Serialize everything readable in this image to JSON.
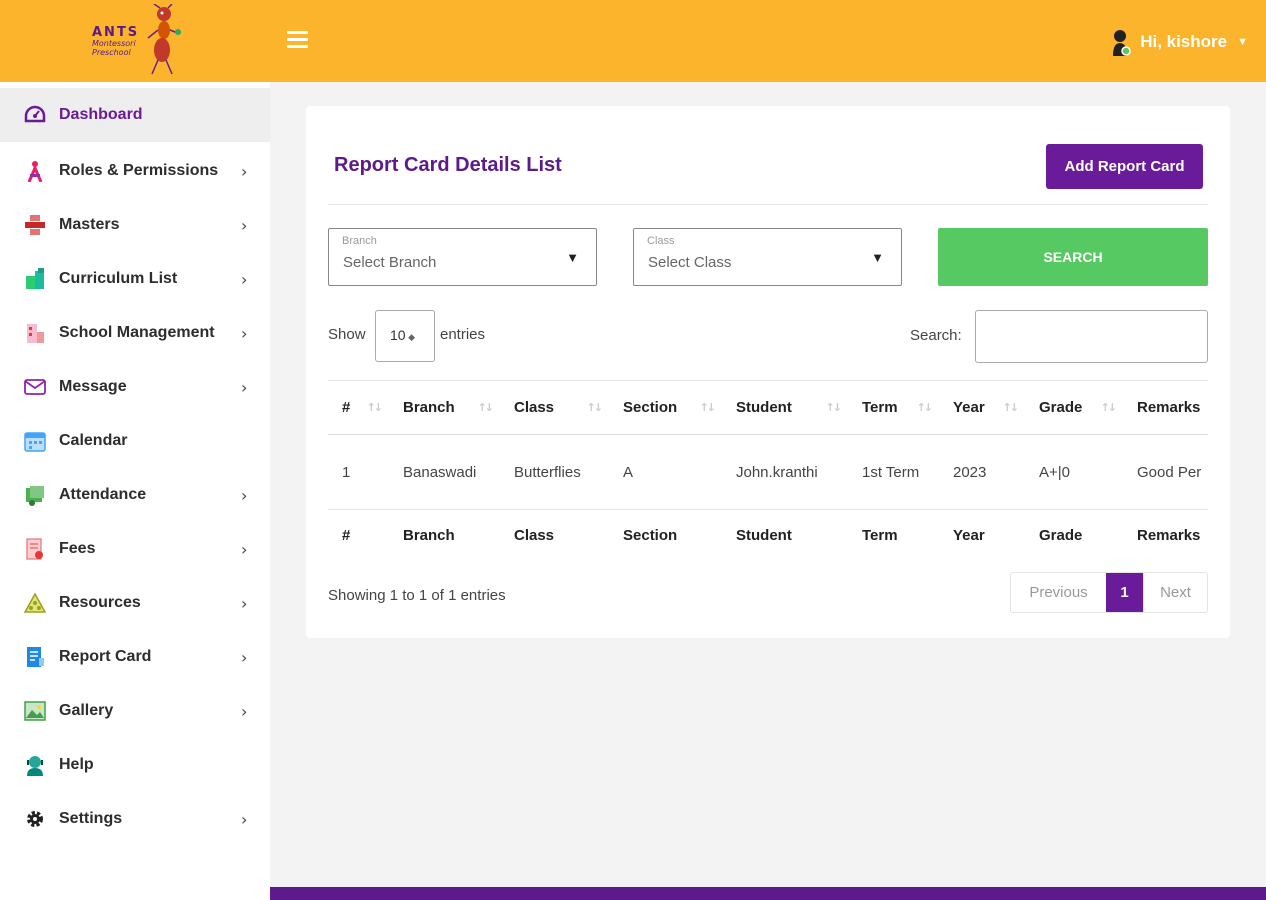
{
  "header": {
    "logo_line1": "ANTS",
    "logo_line2": "Montessori",
    "logo_line3": "Preschool",
    "user_greeting": "Hi, kishore"
  },
  "sidebar": {
    "items": [
      {
        "label": "Dashboard",
        "icon": "dashboard-icon",
        "active": true,
        "has_children": false
      },
      {
        "label": "Roles & Permissions",
        "icon": "roles-icon",
        "has_children": true
      },
      {
        "label": "Masters",
        "icon": "masters-icon",
        "has_children": true
      },
      {
        "label": "Curriculum List",
        "icon": "curriculum-icon",
        "has_children": true
      },
      {
        "label": "School Management",
        "icon": "school-icon",
        "has_children": true
      },
      {
        "label": "Message",
        "icon": "envelope-icon",
        "has_children": true
      },
      {
        "label": "Calendar",
        "icon": "calendar-icon",
        "has_children": false
      },
      {
        "label": "Attendance",
        "icon": "attendance-icon",
        "has_children": true
      },
      {
        "label": "Fees",
        "icon": "fees-icon",
        "has_children": true
      },
      {
        "label": "Resources",
        "icon": "resources-icon",
        "has_children": true
      },
      {
        "label": "Report Card",
        "icon": "report-card-icon",
        "has_children": true
      },
      {
        "label": "Gallery",
        "icon": "gallery-icon",
        "has_children": true
      },
      {
        "label": "Help",
        "icon": "help-icon",
        "has_children": false
      },
      {
        "label": "Settings",
        "icon": "gear-icon",
        "has_children": true
      }
    ],
    "chevron": "›"
  },
  "main": {
    "title": "Report Card Details List",
    "add_button": "Add Report Card",
    "filters": {
      "branch_label": "Branch",
      "branch_value": "Select Branch",
      "class_label": "Class",
      "class_value": "Select Class",
      "search_button": "SEARCH"
    },
    "show_label": "Show",
    "entries_value": "10",
    "entries_label": "entries",
    "search_label": "Search:",
    "table": {
      "columns": [
        "#",
        "Branch",
        "Class",
        "Section",
        "Student",
        "Term",
        "Year",
        "Grade",
        "Remarks"
      ],
      "rows": [
        [
          "1",
          "Banaswadi",
          "Butterflies",
          "A",
          "John.kranthi",
          "1st Term",
          "2023",
          "A+|0",
          "Good Per"
        ]
      ]
    },
    "info": "Showing 1 to 1 of 1 entries",
    "pagination": {
      "previous": "Previous",
      "current": "1",
      "next": "Next"
    }
  },
  "colors": {
    "header_bg": "#fbb42c",
    "accent_purple": "#6a1b9a",
    "search_green": "#57c962"
  }
}
